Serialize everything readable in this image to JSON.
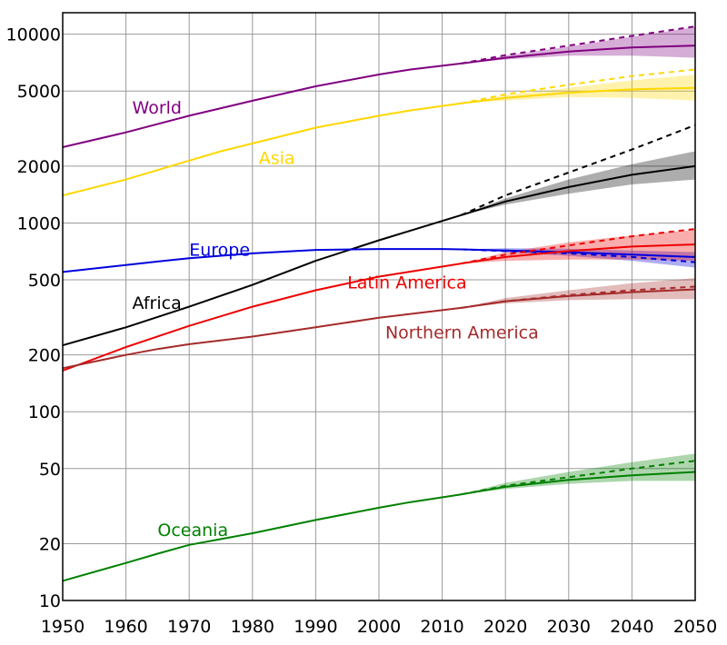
{
  "chart_data": {
    "type": "line",
    "title": "",
    "xlabel": "",
    "ylabel": "",
    "x_scale": "linear",
    "y_scale": "log",
    "xlim": [
      1950,
      2050
    ],
    "ylim": [
      10,
      13000
    ],
    "grid": true,
    "x_ticks": [
      1950,
      1960,
      1970,
      1980,
      1990,
      2000,
      2010,
      2020,
      2030,
      2040,
      2050
    ],
    "x_tick_labels": [
      "1950",
      "1960",
      "1970",
      "1980",
      "1990",
      "2000",
      "2010",
      "2020",
      "2030",
      "2040",
      "2050"
    ],
    "y_ticks": [
      10,
      20,
      50,
      100,
      200,
      500,
      1000,
      2000,
      5000,
      10000
    ],
    "y_tick_labels": [
      "10",
      "20",
      "50",
      "100",
      "200",
      "500",
      "1000",
      "2000",
      "5000",
      "10000"
    ],
    "series": [
      {
        "name": "World",
        "color": "#800080",
        "label_at": [
          1961,
          3800
        ],
        "x": [
          1950,
          1960,
          1970,
          1980,
          1990,
          2000,
          2005,
          2013
        ],
        "values": [
          2520,
          3020,
          3700,
          4440,
          5300,
          6120,
          6500,
          7000
        ],
        "proj_x": [
          2013,
          2020,
          2030,
          2040,
          2050
        ],
        "proj_median": [
          7000,
          7500,
          8100,
          8500,
          8700
        ],
        "proj_high": [
          7000,
          7700,
          8600,
          9700,
          10900
        ],
        "proj_low": [
          7000,
          7350,
          7700,
          7700,
          7500
        ],
        "proj_dashed": [
          7000,
          7750,
          8700,
          9800,
          11000
        ]
      },
      {
        "name": "Asia",
        "color": "#ffd700",
        "label_at": [
          1981,
          2050
        ],
        "x": [
          1950,
          1960,
          1970,
          1975,
          1980,
          1990,
          2000,
          2005,
          2013
        ],
        "values": [
          1400,
          1700,
          2140,
          2400,
          2640,
          3200,
          3700,
          3950,
          4300
        ],
        "proj_x": [
          2013,
          2020,
          2030,
          2040,
          2050
        ],
        "proj_median": [
          4300,
          4600,
          4900,
          5100,
          5200
        ],
        "proj_high": [
          4300,
          4750,
          5200,
          5700,
          6100
        ],
        "proj_low": [
          4300,
          4450,
          4650,
          4600,
          4450
        ],
        "proj_dashed": [
          4300,
          4800,
          5400,
          6000,
          6500
        ]
      },
      {
        "name": "Africa",
        "color": "#000000",
        "label_at": [
          1961,
          350
        ],
        "x": [
          1950,
          1960,
          1970,
          1980,
          1990,
          2000,
          2013
        ],
        "values": [
          225,
          280,
          360,
          470,
          630,
          810,
          1100
        ],
        "proj_x": [
          2013,
          2020,
          2030,
          2040,
          2050
        ],
        "proj_median": [
          1100,
          1300,
          1550,
          1800,
          2000
        ],
        "proj_high": [
          1100,
          1350,
          1700,
          2050,
          2400
        ],
        "proj_low": [
          1100,
          1250,
          1430,
          1600,
          1700
        ],
        "proj_dashed": [
          1100,
          1400,
          1850,
          2450,
          3300
        ]
      },
      {
        "name": "Europe",
        "color": "#0000dd",
        "label_at": [
          1970,
          670
        ],
        "x": [
          1950,
          1965,
          1970,
          1980,
          1990,
          2000,
          2010,
          2013
        ],
        "values": [
          550,
          625,
          650,
          690,
          720,
          728,
          728,
          725
        ],
        "proj_x": [
          2013,
          2020,
          2030,
          2040,
          2050
        ],
        "proj_median": [
          725,
          715,
          700,
          680,
          660
        ],
        "proj_high": [
          725,
          735,
          730,
          715,
          700
        ],
        "proj_low": [
          725,
          700,
          670,
          630,
          580
        ],
        "proj_dashed": [
          725,
          710,
          690,
          660,
          620
        ]
      },
      {
        "name": "Latin America",
        "color": "#ee0000",
        "label_at": [
          1995,
          450
        ],
        "x": [
          1950,
          1960,
          1970,
          1980,
          1990,
          2000,
          2013
        ],
        "values": [
          165,
          220,
          285,
          360,
          440,
          520,
          610
        ],
        "proj_x": [
          2013,
          2020,
          2030,
          2040,
          2050
        ],
        "proj_median": [
          610,
          660,
          710,
          750,
          770
        ],
        "proj_high": [
          610,
          700,
          790,
          860,
          920
        ],
        "proj_low": [
          610,
          630,
          640,
          640,
          630
        ],
        "proj_dashed": [
          610,
          680,
          760,
          850,
          930
        ]
      },
      {
        "name": "Northern America",
        "color": "#a52a2a",
        "label_at": [
          2001,
          245
        ],
        "x": [
          1950,
          1960,
          1965,
          1970,
          1980,
          1990,
          2000,
          2013
        ],
        "values": [
          170,
          200,
          215,
          228,
          250,
          280,
          315,
          355
        ],
        "proj_x": [
          2013,
          2020,
          2030,
          2040,
          2050
        ],
        "proj_median": [
          355,
          385,
          410,
          430,
          445
        ],
        "proj_high": [
          355,
          400,
          440,
          480,
          510
        ],
        "proj_low": [
          355,
          375,
          390,
          395,
          395
        ],
        "proj_dashed": [
          355,
          385,
          415,
          440,
          460
        ]
      },
      {
        "name": "Oceania",
        "color": "#008000",
        "label_at": [
          1965,
          22
        ],
        "x": [
          1950,
          1960,
          1965,
          1970,
          1980,
          1990,
          2000,
          2005,
          2013
        ],
        "values": [
          12.7,
          15.8,
          17.7,
          19.7,
          22.7,
          26.7,
          31.0,
          33.2,
          36.5
        ],
        "proj_x": [
          2013,
          2020,
          2030,
          2040,
          2050
        ],
        "proj_median": [
          36.5,
          40,
          43.5,
          46,
          48
        ],
        "proj_high": [
          36.5,
          42,
          48,
          54,
          60
        ],
        "proj_low": [
          36.5,
          39,
          41.5,
          43,
          43
        ],
        "proj_dashed": [
          36.5,
          40.5,
          45,
          50,
          55
        ]
      }
    ]
  }
}
